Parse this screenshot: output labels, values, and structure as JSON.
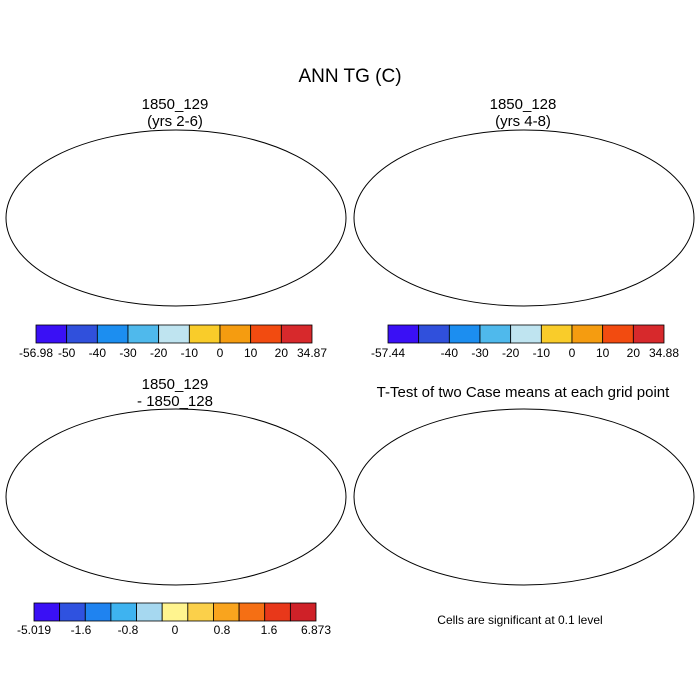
{
  "title": "ANN TG (C)",
  "panels": [
    {
      "title_line1": "1850_129",
      "title_line2": "(yrs 2-6)",
      "colorbar": {
        "colors": [
          "#3a10f5",
          "#3050dc",
          "#1c8ef0",
          "#4fb9ec",
          "#bfe4f0",
          "#f9cc2a",
          "#f59c10",
          "#f24b10",
          "#d7292c"
        ],
        "labels": [
          "-56.98",
          "-50",
          "-40",
          "-30",
          "-20",
          "-10",
          "0",
          "10",
          "20",
          "34.87"
        ]
      }
    },
    {
      "title_line1": "1850_128",
      "title_line2": "(yrs 4-8)",
      "colorbar": {
        "colors": [
          "#3a10f5",
          "#3050dc",
          "#1c8ef0",
          "#4fb9ec",
          "#bfe4f0",
          "#f9cc2a",
          "#f59c10",
          "#f24b10",
          "#d7292c"
        ],
        "labels": [
          "-57.44",
          "",
          "-40",
          "-30",
          "-20",
          "-10",
          "0",
          "10",
          "20",
          "34.88"
        ]
      }
    },
    {
      "title_line1": "1850_129",
      "title_line2": "- 1850_128",
      "colorbar": {
        "colors": [
          "#3a10f5",
          "#2f52e0",
          "#1f83f0",
          "#3eb3f0",
          "#a6d8f0",
          "#fff48f",
          "#fbd04a",
          "#f9a41e",
          "#f56f14",
          "#e8381a",
          "#cf2128"
        ],
        "labels": [
          "-5.019",
          "",
          "-1.6",
          "",
          "-0.8",
          "",
          "0",
          "",
          "0.8",
          "",
          "1.6",
          "",
          "6.873"
        ]
      }
    },
    {
      "title_line1": "T-Test of two Case means at each grid point"
    }
  ],
  "significance_note": "Cells are significant at 0.1 level"
}
